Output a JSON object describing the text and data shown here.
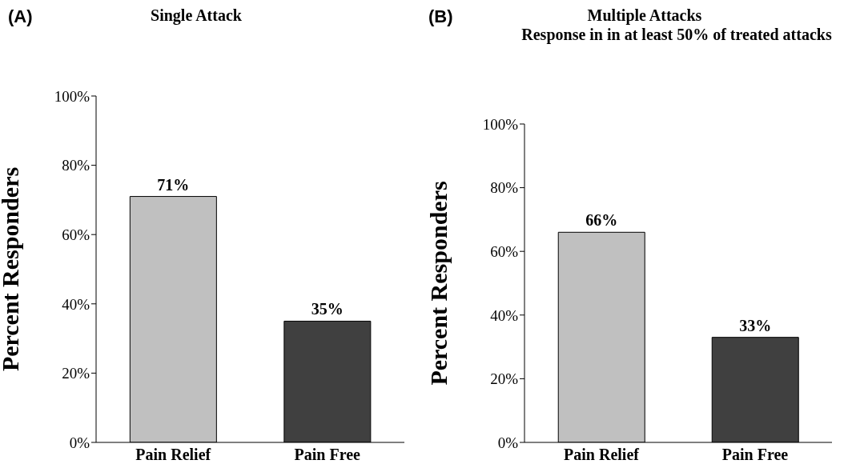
{
  "chart_data": [
    {
      "type": "bar",
      "title": "Single Attack",
      "ylabel": "Percent  Responders",
      "annotations": [
        "(A)"
      ],
      "categories": [
        "Pain Relief",
        "Pain Free"
      ],
      "values": [
        71,
        35
      ],
      "colors": [
        "#c0c0c0",
        "#404040"
      ],
      "value_labels": [
        "71%",
        "35%"
      ],
      "ylim": [
        0,
        100
      ],
      "yticks": [
        {
          "value": 0,
          "label": "0%"
        },
        {
          "value": 20,
          "label": "20%"
        },
        {
          "value": 40,
          "label": "40%"
        },
        {
          "value": 60,
          "label": "60%"
        },
        {
          "value": 80,
          "label": "80%"
        },
        {
          "value": 100,
          "label": "100%"
        }
      ],
      "grid": false,
      "legend": false
    },
    {
      "type": "bar",
      "title": "Multiple Attacks",
      "subtitle": "Response in in at least 50% of treated attacks",
      "ylabel": "Percent  Responders",
      "annotations": [
        "(B)"
      ],
      "categories": [
        "Pain Relief",
        "Pain Free"
      ],
      "values": [
        66,
        33
      ],
      "colors": [
        "#c0c0c0",
        "#404040"
      ],
      "value_labels": [
        "66%",
        "33%"
      ],
      "ylim": [
        0,
        100
      ],
      "yticks": [
        {
          "value": 0,
          "label": "0%"
        },
        {
          "value": 20,
          "label": "20%"
        },
        {
          "value": 40,
          "label": "40%"
        },
        {
          "value": 60,
          "label": "60%"
        },
        {
          "value": 80,
          "label": "80%"
        },
        {
          "value": 100,
          "label": "100%"
        }
      ],
      "grid": false,
      "legend": false
    }
  ]
}
